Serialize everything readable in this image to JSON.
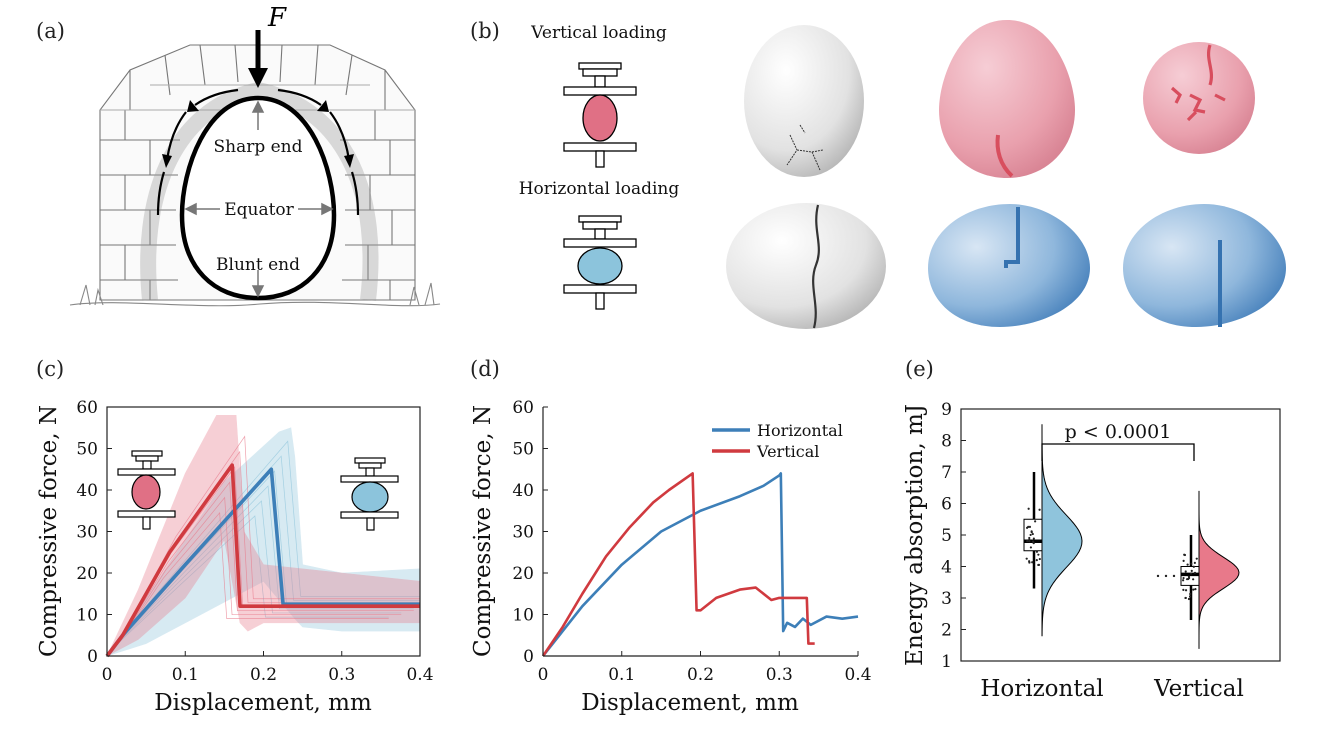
{
  "panel_labels": [
    "(a)",
    "(b)",
    "(c)",
    "(d)",
    "(e)"
  ],
  "panel_a": {
    "force_label": "F",
    "labels": {
      "sharp": "Sharp end",
      "equator": "Equator",
      "blunt": "Blunt end"
    }
  },
  "panel_b": {
    "vertical_label": "Vertical loading",
    "horizontal_label": "Horizontal loading"
  },
  "colors": {
    "vertical": "#d03a3f",
    "horizontal": "#3d7fb8",
    "vertical_fill": "#e8798a",
    "horizontal_fill": "#8fc4dc",
    "egg_vertical": "#e9a0ad",
    "egg_horizontal": "#8fb7dc"
  },
  "chart_data": [
    {
      "id": "c",
      "type": "line",
      "xlabel": "Displacement, mm",
      "ylabel": "Compressive force, N",
      "xlim": [
        0,
        0.4
      ],
      "ylim": [
        0,
        60
      ],
      "xticks": [
        "0",
        "0.1",
        "0.2",
        "0.3",
        "0.4"
      ],
      "yticks": [
        "0",
        "10",
        "20",
        "30",
        "40",
        "50",
        "60"
      ],
      "series": [
        {
          "key": "horizontal",
          "x": [
            0,
            0.02,
            0.1,
            0.21,
            0.225,
            0.4
          ],
          "y": [
            0,
            5,
            22,
            45,
            12.5,
            12.5
          ],
          "band_upper": [
            [
              0,
              0
            ],
            [
              0.05,
              14
            ],
            [
              0.15,
              42
            ],
            [
              0.22,
              54
            ],
            [
              0.235,
              55
            ],
            [
              0.24,
              48
            ],
            [
              0.25,
              22
            ],
            [
              0.3,
              20
            ],
            [
              0.4,
              21
            ]
          ],
          "band_lower": [
            [
              0.4,
              6
            ],
            [
              0.3,
              6
            ],
            [
              0.25,
              7
            ],
            [
              0.24,
              9
            ],
            [
              0.2,
              18
            ],
            [
              0.1,
              8
            ],
            [
              0.05,
              3
            ],
            [
              0,
              0
            ]
          ]
        },
        {
          "key": "vertical",
          "x": [
            0,
            0.02,
            0.08,
            0.16,
            0.17,
            0.4
          ],
          "y": [
            0,
            5,
            25,
            46,
            12,
            12
          ],
          "band_upper": [
            [
              0,
              0
            ],
            [
              0.04,
              16
            ],
            [
              0.1,
              44
            ],
            [
              0.14,
              58
            ],
            [
              0.165,
              58
            ],
            [
              0.175,
              30
            ],
            [
              0.2,
              22
            ],
            [
              0.3,
              20
            ],
            [
              0.4,
              18
            ]
          ],
          "band_lower": [
            [
              0.4,
              8
            ],
            [
              0.3,
              8
            ],
            [
              0.2,
              8
            ],
            [
              0.18,
              6
            ],
            [
              0.17,
              8
            ],
            [
              0.15,
              28
            ],
            [
              0.1,
              14
            ],
            [
              0.04,
              4
            ],
            [
              0,
              0
            ]
          ]
        }
      ]
    },
    {
      "id": "d",
      "type": "line",
      "xlabel": "Displacement, mm",
      "ylabel": "Compressive force, N",
      "xlim": [
        0,
        0.4
      ],
      "ylim": [
        0,
        60
      ],
      "xticks": [
        "0",
        "0.1",
        "0.2",
        "0.3",
        "0.4"
      ],
      "yticks": [
        "0",
        "10",
        "20",
        "30",
        "40",
        "50",
        "60"
      ],
      "legend": [
        "Horizontal",
        "Vertical"
      ],
      "series": [
        {
          "name": "Horizontal",
          "x": [
            0,
            0.025,
            0.05,
            0.1,
            0.15,
            0.2,
            0.25,
            0.28,
            0.3,
            0.302,
            0.305,
            0.31,
            0.32,
            0.33,
            0.34,
            0.36,
            0.38,
            0.4
          ],
          "y": [
            0,
            6,
            12,
            22,
            30,
            35,
            38.5,
            41,
            43.5,
            44,
            6,
            8,
            7,
            9,
            7.5,
            9.5,
            9,
            9.5
          ]
        },
        {
          "name": "Vertical",
          "x": [
            0,
            0.025,
            0.05,
            0.08,
            0.11,
            0.14,
            0.16,
            0.19,
            0.195,
            0.2,
            0.22,
            0.25,
            0.27,
            0.29,
            0.3,
            0.31,
            0.32,
            0.335,
            0.337,
            0.34,
            0.345
          ],
          "y": [
            0,
            7,
            15,
            24,
            31,
            37,
            40,
            44,
            11,
            11,
            14,
            16,
            16.5,
            13.5,
            14,
            14,
            14,
            14,
            3,
            3,
            3
          ]
        }
      ]
    },
    {
      "id": "e",
      "type": "violin",
      "ylabel": "Energy absorption, mJ",
      "ylim": [
        1,
        9
      ],
      "yticks": [
        "1",
        "2",
        "3",
        "4",
        "5",
        "6",
        "7",
        "8",
        "9"
      ],
      "categories": [
        "Horizontal",
        "Vertical"
      ],
      "annotation": "p < 0.0001",
      "groups": [
        {
          "name": "Horizontal",
          "median": 4.8,
          "q1": 4.5,
          "q3": 5.5,
          "whisker_low": 3.3,
          "whisker_high": 7.0,
          "min": 1.8,
          "max": 8.5,
          "kde_peak": 4.8
        },
        {
          "name": "Vertical",
          "median": 3.75,
          "q1": 3.4,
          "q3": 4.0,
          "whisker_low": 2.3,
          "whisker_high": 5.0,
          "min": 1.4,
          "max": 6.4,
          "kde_peak": 3.8
        }
      ]
    }
  ]
}
